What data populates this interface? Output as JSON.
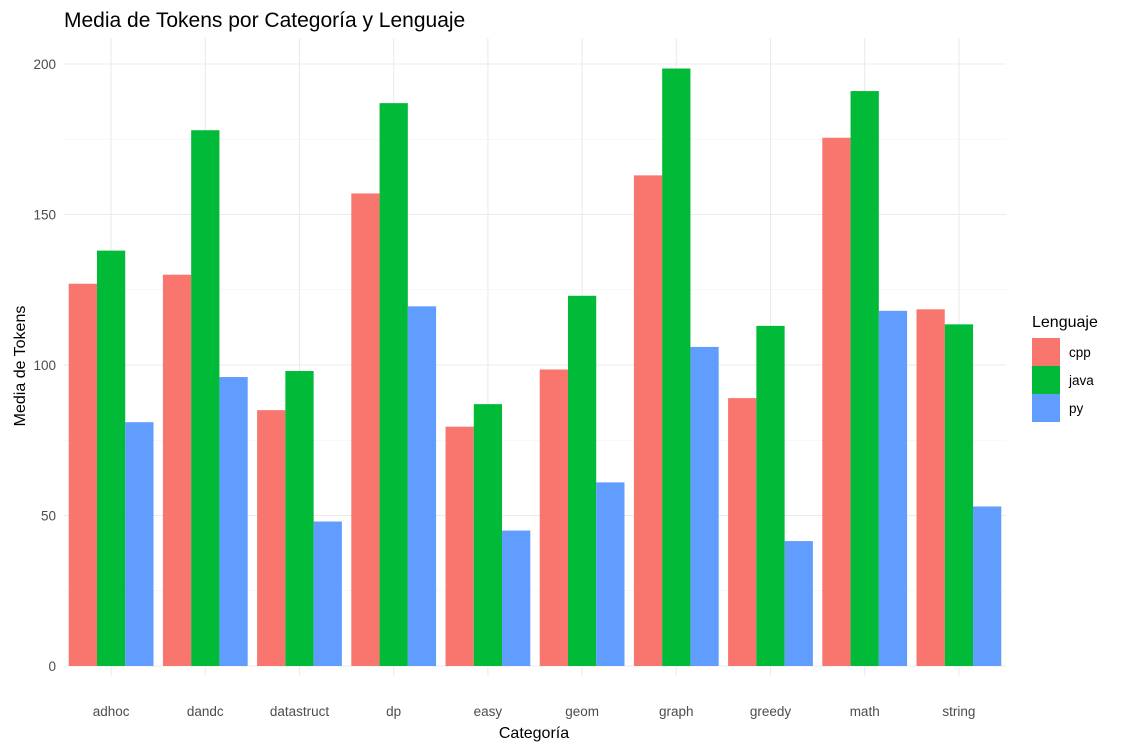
{
  "chart_data": {
    "type": "bar",
    "title": "Media de Tokens por Categoría y Lenguaje",
    "xlabel": "Categoría",
    "ylabel": "Media de Tokens",
    "categories": [
      "adhoc",
      "dandc",
      "datastruct",
      "dp",
      "easy",
      "geom",
      "graph",
      "greedy",
      "math",
      "string"
    ],
    "series": [
      {
        "name": "cpp",
        "color": "#F8766D",
        "values": [
          127,
          130,
          85,
          157,
          79.5,
          98.5,
          163,
          89,
          175.5,
          118.5
        ]
      },
      {
        "name": "java",
        "color": "#00BA38",
        "values": [
          138,
          178,
          98,
          187,
          87,
          123,
          198.5,
          113,
          191,
          113.5
        ]
      },
      {
        "name": "py",
        "color": "#619CFF",
        "values": [
          81,
          96,
          48,
          119.5,
          45,
          61,
          106,
          41.5,
          118,
          53
        ]
      }
    ],
    "ylim": [
      0,
      208
    ],
    "yticks": [
      0,
      50,
      100,
      150,
      200
    ],
    "grid": true,
    "legend": {
      "title": "Lenguaje",
      "position": "right"
    }
  }
}
